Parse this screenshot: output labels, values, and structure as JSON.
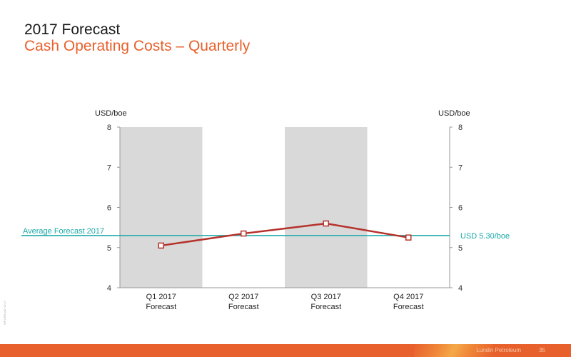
{
  "header": {
    "title": "2017 Forecast",
    "subtitle": "Cash Operating Costs – Quarterly"
  },
  "chart_data": {
    "type": "line",
    "categories": [
      [
        "Q1 2017",
        "Forecast"
      ],
      [
        "Q2 2017",
        "Forecast"
      ],
      [
        "Q3 2017",
        "Forecast"
      ],
      [
        "Q4 2017",
        "Forecast"
      ]
    ],
    "series": [
      {
        "values": [
          5.05,
          5.35,
          5.6,
          5.25
        ]
      }
    ],
    "ylim": [
      4,
      8
    ],
    "y_ticks": [
      4,
      5,
      6,
      7,
      8
    ],
    "ylabel_left": "USD/boe",
    "ylabel_right": "USD/boe",
    "shaded_categories": [
      0,
      2
    ],
    "reference_line": {
      "value": 5.3,
      "label_left": "Average Forecast 2017",
      "label_right": "USD 5.30/boe"
    },
    "colors": {
      "series": "#b5312a",
      "reference": "#1aa8a8",
      "shade": "#d9d9d9",
      "axis": "#999999"
    },
    "legend": "none",
    "grid": false
  },
  "footer": {
    "company": "Lundin Petroleum",
    "page_number": "35",
    "side_code": "WP2356 p02 12.17"
  }
}
